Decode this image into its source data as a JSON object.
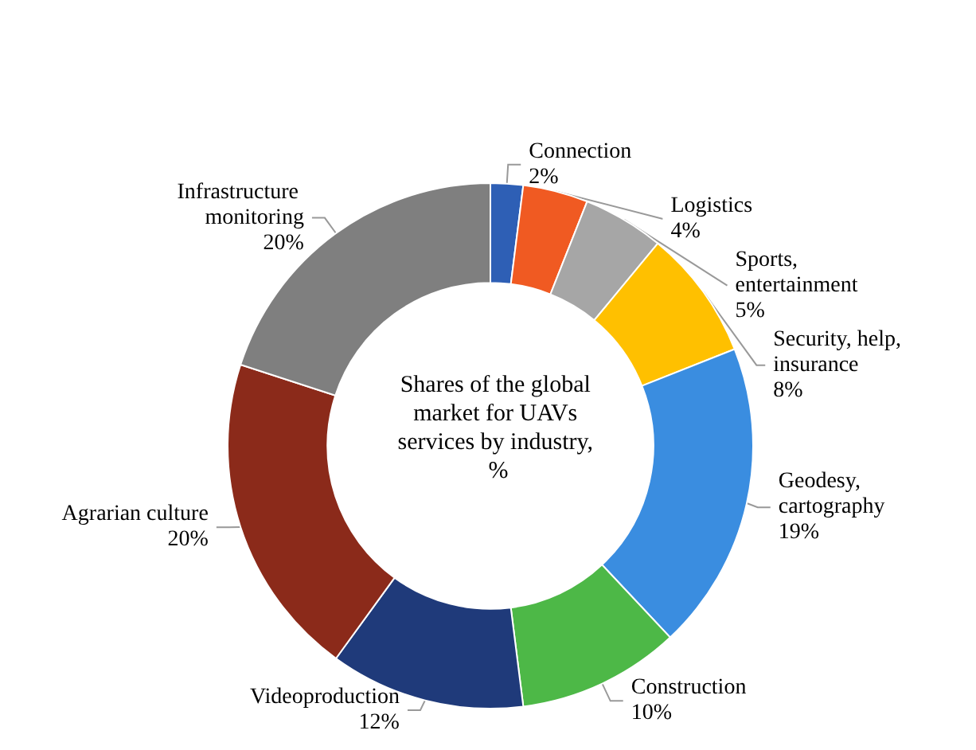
{
  "chart_data": {
    "type": "donut",
    "title": "Shares of the global market for UAVs services by industry, %",
    "categories": [
      "Connection",
      "Logistics",
      "Sports, entertainment",
      "Security, help, insurance",
      "Geodesy, cartography",
      "Construction",
      "Videoproduction",
      "Agrarian culture",
      "Infrastructure monitoring"
    ],
    "values": [
      2,
      4,
      5,
      8,
      19,
      10,
      12,
      20,
      20
    ],
    "value_labels": [
      "2%",
      "4%",
      "5%",
      "8%",
      "19%",
      "10%",
      "12%",
      "20%",
      "20%"
    ],
    "colors": [
      "#2e5fb5",
      "#f05a22",
      "#a6a6a6",
      "#ffc000",
      "#3a8de0",
      "#4db847",
      "#1f3a7a",
      "#8b2a1a",
      "#7f7f7f"
    ],
    "legend": false
  }
}
